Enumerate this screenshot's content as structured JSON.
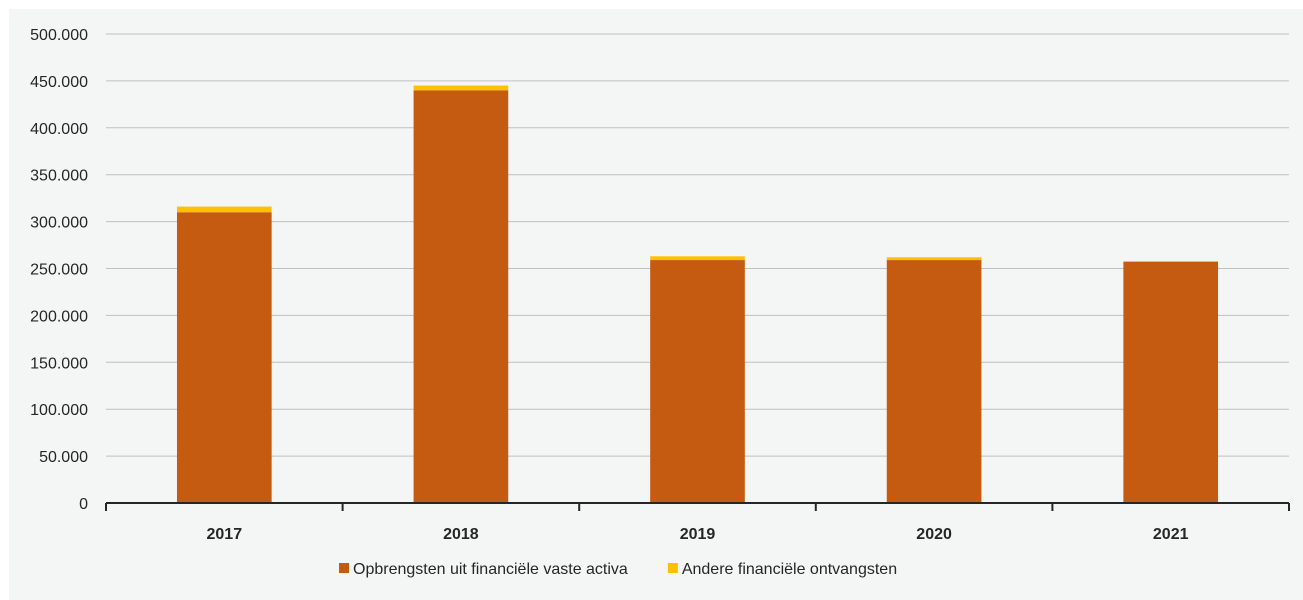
{
  "chart_data": {
    "type": "bar",
    "stacked": true,
    "categories": [
      "2017",
      "2018",
      "2019",
      "2020",
      "2021"
    ],
    "series": [
      {
        "name": "Opbrengsten uit financiële vaste activa",
        "values": [
          310000,
          440000,
          259000,
          259000,
          257000
        ],
        "color": "#c55a11"
      },
      {
        "name": "Andere financiële ontvangsten",
        "values": [
          6000,
          5000,
          4000,
          3000,
          1000
        ],
        "color": "#ffc000"
      }
    ],
    "ylim": [
      0,
      500000
    ],
    "yticks": [
      "0",
      "50.000",
      "100.000",
      "150.000",
      "200.000",
      "250.000",
      "300.000",
      "350.000",
      "400.000",
      "450.000",
      "500.000"
    ],
    "ytick_values": [
      0,
      50000,
      100000,
      150000,
      200000,
      250000,
      300000,
      350000,
      400000,
      450000,
      500000
    ],
    "grid": true,
    "legend_position": "bottom",
    "title": "",
    "xlabel": "",
    "ylabel": ""
  }
}
